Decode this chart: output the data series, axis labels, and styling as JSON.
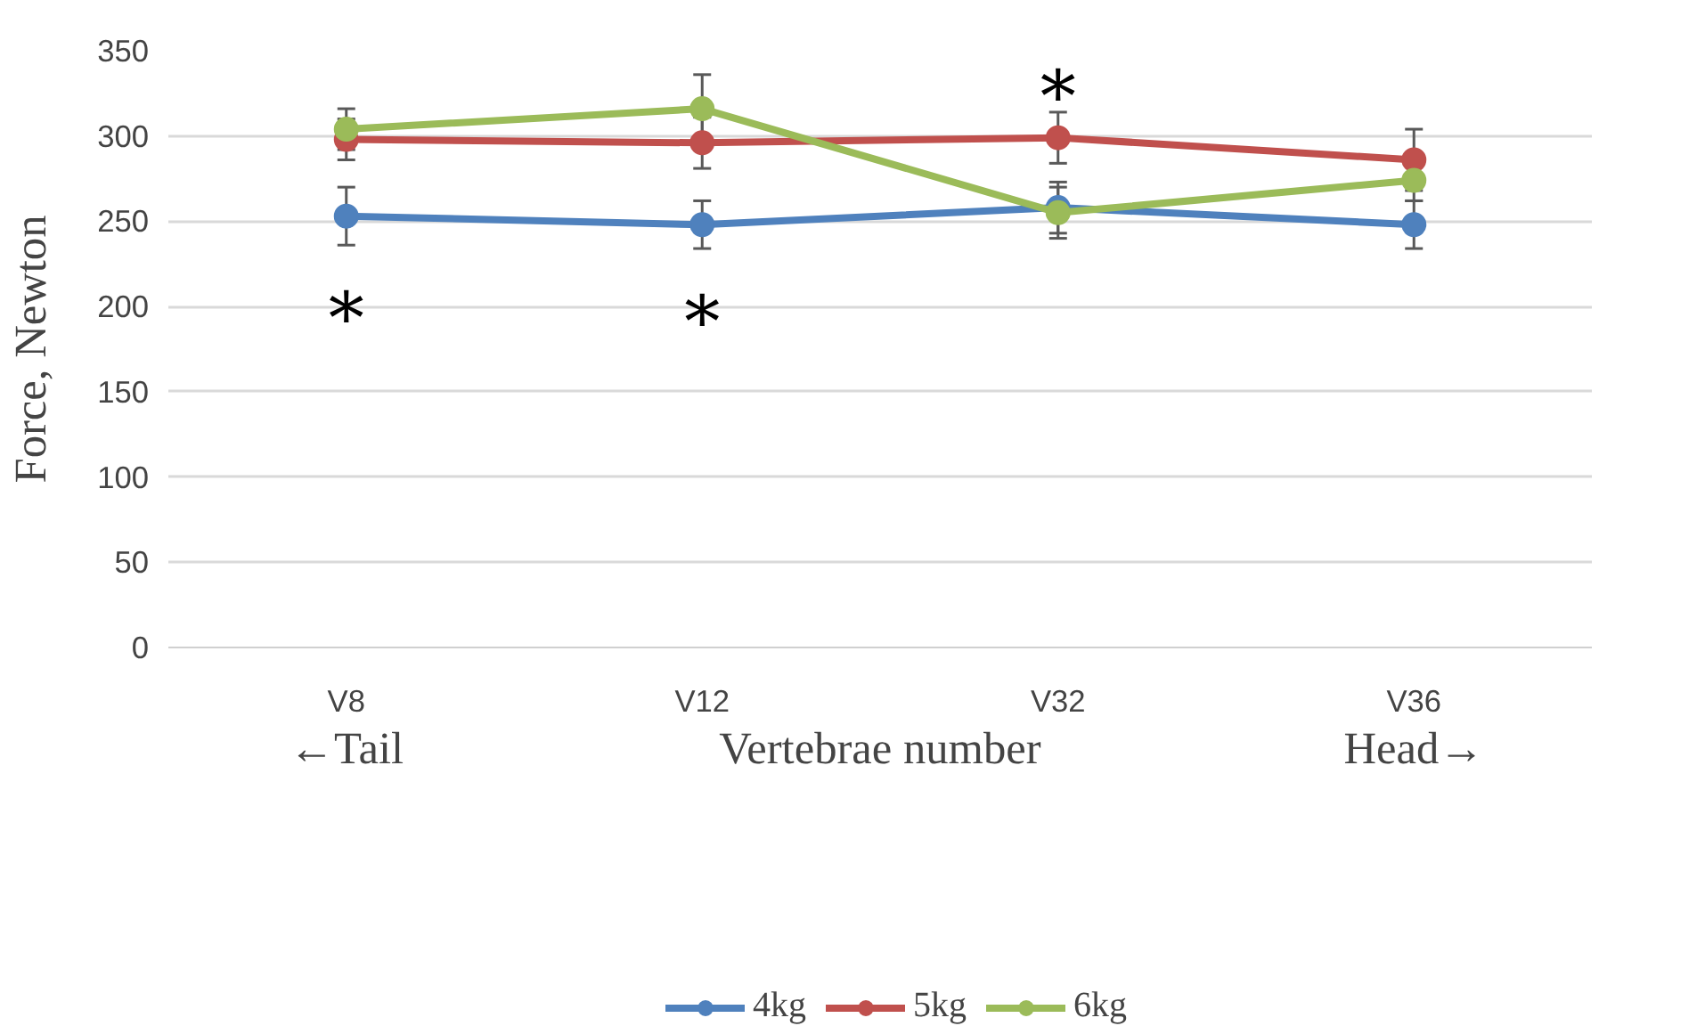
{
  "chart_data": {
    "type": "line",
    "xlabel": "Vertebrae number",
    "ylabel": "Force, Newton",
    "categories": [
      "V8",
      "V12",
      "V32",
      "V36"
    ],
    "series": [
      {
        "name": "4kg",
        "color": "#4f81bd",
        "values": [
          253,
          248,
          258,
          248
        ],
        "errors": [
          17,
          14,
          15,
          14
        ]
      },
      {
        "name": "5kg",
        "color": "#c0504d",
        "values": [
          298,
          296,
          299,
          286
        ],
        "errors": [
          12,
          15,
          15,
          18
        ]
      },
      {
        "name": "6kg",
        "color": "#9bbb59",
        "values": [
          304,
          316,
          255,
          274
        ],
        "errors": [
          12,
          20,
          15,
          12
        ]
      }
    ],
    "ylim": [
      0,
      350
    ],
    "yticks": [
      0,
      50,
      100,
      150,
      200,
      250,
      300,
      350
    ],
    "grid": "y",
    "legend": "bottom",
    "marker": "circle",
    "line_style": "solid",
    "annotations": [
      "*",
      "*",
      "*",
      "←Tail",
      "Head→"
    ]
  }
}
